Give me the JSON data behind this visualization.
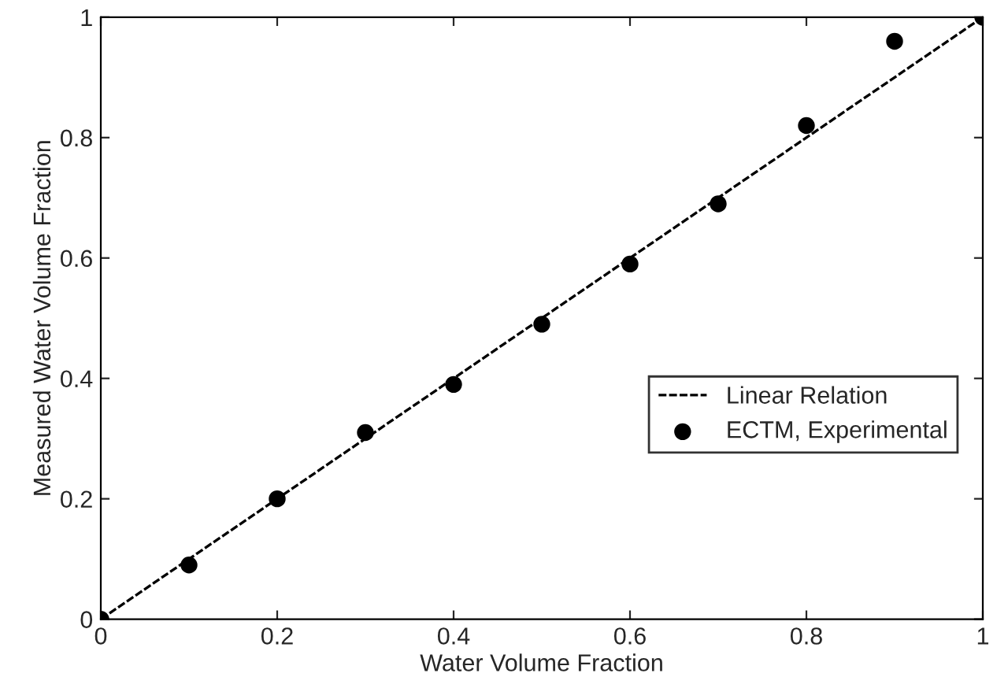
{
  "chart_data": {
    "type": "scatter",
    "xlabel": "Water Volume Fraction",
    "ylabel": "Measured Water Volume Fraction",
    "xlim": [
      0,
      1
    ],
    "ylim": [
      0,
      1
    ],
    "xticks": [
      0,
      0.2,
      0.4,
      0.6,
      0.8,
      1
    ],
    "yticks": [
      0,
      0.2,
      0.4,
      0.6,
      0.8,
      1
    ],
    "grid": false,
    "legend": "right",
    "series": [
      {
        "name": "Linear Relation",
        "type": "line",
        "color": "#000000",
        "line_style": "dashed",
        "marker": "none",
        "x": [
          0,
          1
        ],
        "values": [
          0,
          1
        ]
      },
      {
        "name": "ECTM, Experimental",
        "color": "#000000",
        "marker": "circle",
        "x": [
          0,
          0.1,
          0.2,
          0.3,
          0.4,
          0.5,
          0.6,
          0.7,
          0.8,
          0.9,
          1
        ],
        "values": [
          0,
          0.09,
          0.2,
          0.31,
          0.39,
          0.49,
          0.59,
          0.69,
          0.82,
          0.96,
          1
        ]
      }
    ]
  }
}
